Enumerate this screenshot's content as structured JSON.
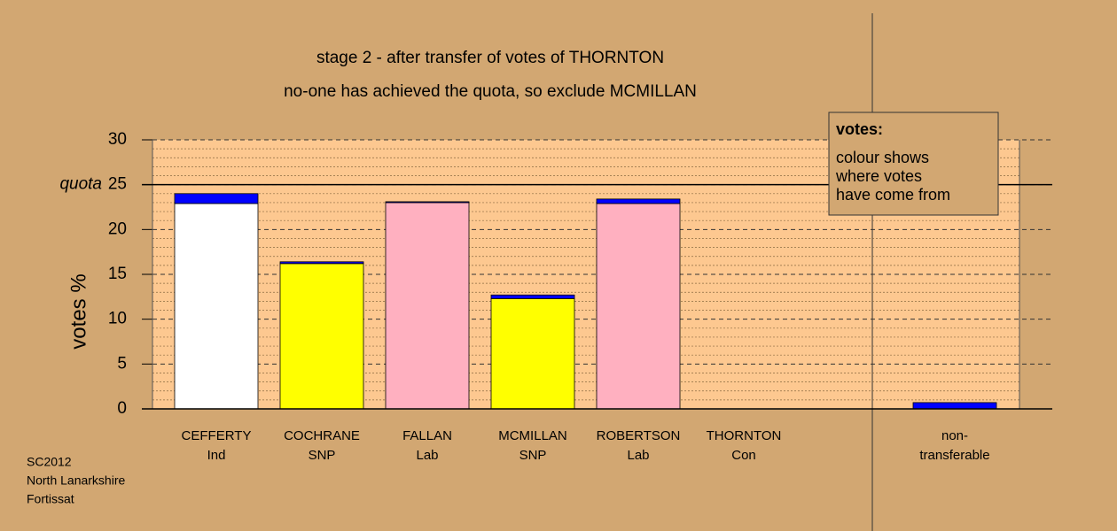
{
  "chart_data": {
    "type": "stacked-bar",
    "title": "stage 2 - after transfer of votes of THORNTON",
    "subtitle": "no-one has achieved the quota, so exclude MCMILLAN",
    "ylabel": "votes %",
    "categories": [
      [
        "CEFFERTY",
        "Ind"
      ],
      [
        "COCHRANE",
        "SNP"
      ],
      [
        "FALLAN",
        "Lab"
      ],
      [
        "MCMILLAN",
        "SNP"
      ],
      [
        "ROBERTSON",
        "Lab"
      ],
      [
        "THORNTON",
        "Con"
      ],
      [
        "non-",
        "transferable"
      ]
    ],
    "series": [
      {
        "colors": [
          "#ffffff",
          "#ffff00",
          "#ffb0c0",
          "#ffff00",
          "#ffb0c0",
          "#ffffff",
          "#0000ff"
        ],
        "values": [
          22.9,
          16.2,
          23.0,
          12.3,
          22.9,
          0,
          0
        ]
      },
      {
        "color": "#0000ff",
        "values": [
          1.1,
          0.2,
          0.1,
          0.4,
          0.5,
          0,
          0.7
        ]
      }
    ],
    "ylim": [
      0,
      30
    ],
    "yticks": [
      0,
      5,
      10,
      15,
      20,
      25,
      30
    ],
    "grid": true,
    "minor_grid": true,
    "quota": {
      "label": "quota",
      "value": 25
    },
    "legend": {
      "title": "votes:",
      "lines": [
        "colour shows",
        "where votes",
        "have come from"
      ]
    },
    "footer": [
      "SC2012",
      "North Lanarkshire",
      "Fortissat"
    ]
  }
}
